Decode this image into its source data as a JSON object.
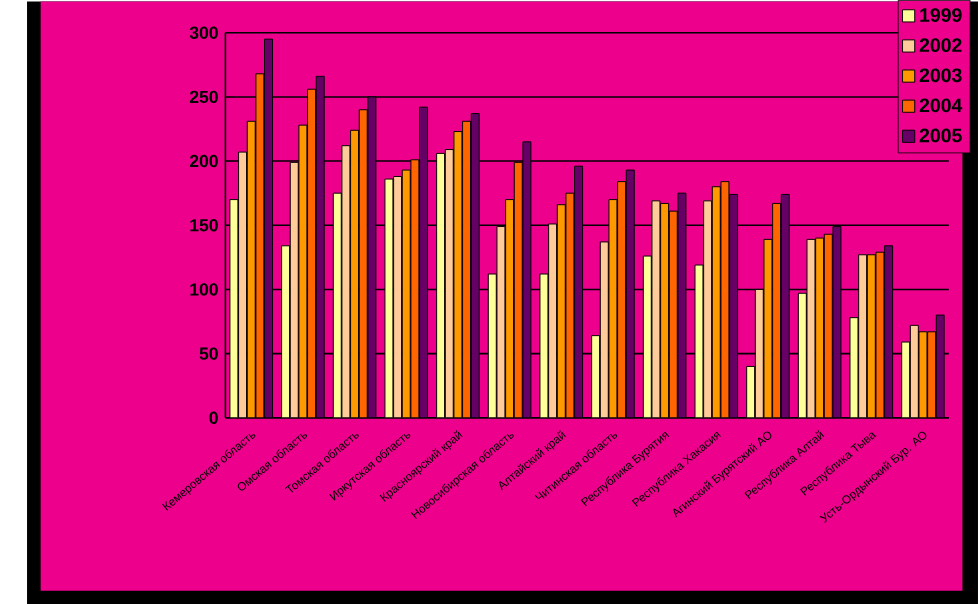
{
  "chart_data": {
    "type": "bar",
    "categories": [
      "Кемеровская область",
      "Омская область",
      "Томская область",
      "Иркутская область",
      "Красноярский край",
      "Новосибирская область",
      "Алтайский край",
      "Читинская область",
      "Республика Бурятия",
      "Республика Хакасия",
      "Агинский Бурятский АО",
      "Республика Алтай",
      "Республика Тыва",
      "Усть-Ордынский Бур. АО"
    ],
    "series": [
      {
        "name": "1999",
        "color": "#ffff99",
        "values": [
          170,
          134,
          175,
          186,
          206,
          112,
          112,
          64,
          126,
          119,
          40,
          97,
          78,
          59
        ]
      },
      {
        "name": "2002",
        "color": "#ffcc99",
        "values": [
          207,
          199,
          212,
          188,
          209,
          149,
          151,
          137,
          169,
          169,
          100,
          139,
          127,
          72
        ]
      },
      {
        "name": "2003",
        "color": "#ff9900",
        "values": [
          231,
          228,
          224,
          193,
          223,
          170,
          166,
          170,
          167,
          180,
          139,
          140,
          127,
          67
        ]
      },
      {
        "name": "2004",
        "color": "#ff6600",
        "values": [
          268,
          256,
          240,
          201,
          231,
          199,
          175,
          184,
          161,
          184,
          167,
          143,
          129,
          67
        ]
      },
      {
        "name": "2005",
        "color": "#660066",
        "values": [
          295,
          266,
          250,
          242,
          237,
          215,
          196,
          193,
          175,
          174,
          174,
          149,
          134,
          80
        ]
      }
    ],
    "ylim": [
      0,
      300
    ],
    "yticks": [
      0,
      50,
      100,
      150,
      200,
      250,
      300
    ],
    "grid": "y",
    "legend": "top right"
  }
}
